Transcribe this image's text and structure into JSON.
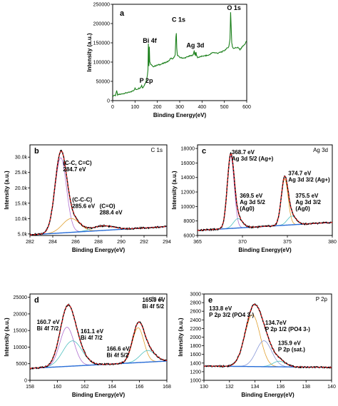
{
  "chart_data": [
    {
      "id": "a",
      "type": "line",
      "panel_label": "a",
      "xlabel": "Binding Energy(eV)",
      "ylabel": "Intensity (a.u.)",
      "xlim": [
        0,
        600
      ],
      "ylim": [
        0,
        250000
      ],
      "xticks": [
        0,
        100,
        200,
        300,
        400,
        500,
        600
      ],
      "yticks": [
        0,
        50000,
        100000,
        150000,
        200000,
        250000
      ],
      "grid": false,
      "series": [
        {
          "color": "#1a7f1a",
          "x": [
            0,
            8,
            12,
            18,
            22,
            30,
            40,
            60,
            80,
            95,
            100,
            105,
            110,
            125,
            130,
            133,
            136,
            140,
            150,
            155,
            158,
            160,
            162,
            164,
            166,
            170,
            180,
            200,
            220,
            240,
            250,
            260,
            270,
            280,
            283,
            285,
            287,
            290,
            300,
            320,
            340,
            360,
            365,
            367,
            369,
            371,
            373,
            375,
            380,
            400,
            430,
            440,
            450,
            470,
            490,
            500,
            510,
            520,
            525,
            528,
            531,
            533,
            536,
            540,
            560,
            570,
            580,
            590,
            600
          ],
          "y": [
            12000,
            14000,
            13500,
            25000,
            15000,
            16000,
            17000,
            20000,
            22000,
            27000,
            32000,
            28000,
            30000,
            34000,
            40000,
            33000,
            35000,
            38000,
            50000,
            65000,
            80000,
            148000,
            90000,
            140000,
            100000,
            95000,
            88000,
            92000,
            95000,
            100000,
            102000,
            110000,
            108000,
            118000,
            165000,
            175000,
            135000,
            118000,
            112000,
            110000,
            115000,
            118000,
            130000,
            120000,
            122000,
            117000,
            125000,
            118000,
            112000,
            115000,
            118000,
            122000,
            125000,
            123000,
            127000,
            130000,
            135000,
            140000,
            160000,
            230000,
            180000,
            150000,
            140000,
            136000,
            138000,
            132000,
            140000,
            145000,
            155000
          ]
        }
      ],
      "annotations": [
        {
          "text": "P 2p",
          "x": 120,
          "y": 46000
        },
        {
          "text": "Bi 4f",
          "x": 135,
          "y": 150000
        },
        {
          "text": "C 1s",
          "x": 265,
          "y": 205000
        },
        {
          "text": "Ag 3d",
          "x": 330,
          "y": 138000
        },
        {
          "text": "O 1s",
          "x": 512,
          "y": 235000
        }
      ]
    },
    {
      "id": "b",
      "type": "line",
      "panel_label": "b",
      "corner_label": "C 1s",
      "xlabel": "Binding Energy(eV)",
      "ylabel": "Intensity (a.u.)",
      "xlim": [
        282,
        294
      ],
      "ylim": [
        4500,
        34000
      ],
      "xticks": [
        282,
        284,
        286,
        288,
        290,
        292,
        294
      ],
      "yticks": [
        5000,
        10000,
        15000,
        20000,
        25000,
        30000
      ],
      "tick_labels_y": [
        "5.0k",
        "10.0k",
        "15.0k",
        "20.0k",
        "25.0k",
        "30.0k"
      ],
      "background": {
        "start": 4700,
        "end": 7400,
        "color": "#2a6ed8"
      },
      "components": [
        {
          "center": 284.7,
          "height": 24500,
          "sigma": 0.5,
          "color": "#b070d0"
        },
        {
          "center": 285.6,
          "height": 4500,
          "sigma": 0.75,
          "color": "#e0a030"
        },
        {
          "center": 288.4,
          "height": 1500,
          "sigma": 0.9,
          "color": "#50c0c0"
        }
      ],
      "data_color": "#000000",
      "fit_color": "#e02020",
      "annotations": [
        {
          "lines": [
            "(C-C, C=C)",
            "284.7 eV"
          ],
          "x": 284.9,
          "y": 27500
        },
        {
          "lines": [
            "(C-C-C)",
            "285.6 eV"
          ],
          "x": 285.7,
          "y": 15500
        },
        {
          "lines": [
            "(C=O)",
            "288.4 eV"
          ],
          "x": 288.1,
          "y": 13500
        }
      ]
    },
    {
      "id": "c",
      "type": "line",
      "panel_label": "c",
      "corner_label": "Ag 3d",
      "xlabel": "Binding Energy(eV)",
      "ylabel": "Intensity (a.u.)",
      "xlim": [
        365,
        380
      ],
      "ylim": [
        6000,
        18500
      ],
      "xticks": [
        365,
        370,
        375,
        380
      ],
      "yticks": [
        6000,
        8000,
        10000,
        12000,
        14000,
        16000,
        18000
      ],
      "background": {
        "start": 6700,
        "end": 7800,
        "color": "#2a6ed8"
      },
      "components": [
        {
          "center": 368.7,
          "height": 10000,
          "sigma": 0.38,
          "color": "#b070d0"
        },
        {
          "center": 369.5,
          "height": 1300,
          "sigma": 0.5,
          "color": "#50c0c0"
        },
        {
          "center": 374.7,
          "height": 6400,
          "sigma": 0.38,
          "color": "#e0a030"
        },
        {
          "center": 375.5,
          "height": 1200,
          "sigma": 0.5,
          "color": "#50c0c0"
        }
      ],
      "data_color": "#000000",
      "fit_color": "#e02020",
      "annotations": [
        {
          "lines": [
            "368.7 eV",
            "Ag 3d 5/2 (Ag+)"
          ],
          "x": 368.8,
          "y": 17200
        },
        {
          "lines": [
            "369.5 eV",
            "Ag 3d 5/2",
            "(Ag0)"
          ],
          "x": 369.7,
          "y": 11200
        },
        {
          "lines": [
            "374.7 eV",
            "Ag 3d 3/2 (Ag+)"
          ],
          "x": 375.1,
          "y": 14300
        },
        {
          "lines": [
            "375.5 eV",
            "Ag 3d 3/2",
            "(Ag0)"
          ],
          "x": 375.9,
          "y": 11200
        }
      ]
    },
    {
      "id": "d",
      "type": "line",
      "panel_label": "d",
      "corner_label": "Bi 4f",
      "xlabel": "Binding Energy(eV)",
      "ylabel": "Intensity (a.u.)",
      "xlim": [
        158,
        168
      ],
      "ylim": [
        0,
        26000
      ],
      "xticks": [
        158,
        160,
        162,
        164,
        166,
        168
      ],
      "yticks": [
        0,
        5000,
        10000,
        15000,
        20000,
        25000
      ],
      "background": {
        "start": 3600,
        "end": 5800,
        "color": "#2a6ed8"
      },
      "components": [
        {
          "center": 160.7,
          "height": 11800,
          "sigma": 0.52,
          "color": "#b070d0"
        },
        {
          "center": 161.1,
          "height": 7600,
          "sigma": 0.7,
          "color": "#50c0c0"
        },
        {
          "center": 165.9,
          "height": 10500,
          "sigma": 0.42,
          "color": "#e0a030"
        },
        {
          "center": 166.6,
          "height": 3500,
          "sigma": 0.55,
          "color": "#50c0c0"
        }
      ],
      "data_color": "#000000",
      "fit_color": "#e02020",
      "annotations": [
        {
          "lines": [
            "160.7 eV",
            "Bi 4f 7/2"
          ],
          "x": 158.5,
          "y": 17000
        },
        {
          "lines": [
            "161.1 eV",
            "Bi 4f 7/2"
          ],
          "x": 161.7,
          "y": 14200
        },
        {
          "lines": [
            "166.6 eV",
            "Bi 4f 5/2"
          ],
          "x": 163.6,
          "y": 8900
        },
        {
          "lines": [
            "165.9 eV",
            "Bi 4f 5/2"
          ],
          "x": 166.2,
          "y": 23600
        }
      ]
    },
    {
      "id": "e",
      "type": "line",
      "panel_label": "e",
      "corner_label": "P 2p",
      "xlabel": "Binding Energy(eV)",
      "ylabel": "Intensity (a.u.)",
      "xlim": [
        130,
        140
      ],
      "ylim": [
        1000,
        3000
      ],
      "xticks": [
        130,
        132,
        134,
        136,
        138,
        140
      ],
      "yticks": [
        1000,
        1200,
        1400,
        1600,
        1800,
        2000,
        2200,
        2400,
        2600,
        2800,
        3000
      ],
      "background": {
        "start": 1330,
        "end": 1300,
        "color": "#2a6ed8"
      },
      "components": [
        {
          "center": 133.8,
          "height": 1200,
          "sigma": 0.6,
          "color": "#e0a030"
        },
        {
          "center": 134.7,
          "height": 600,
          "sigma": 0.6,
          "color": "#8898d8"
        },
        {
          "center": 135.9,
          "height": 130,
          "sigma": 0.5,
          "color": "#50c0c0"
        }
      ],
      "data_color": "#000000",
      "fit_color": "#e02020",
      "annotations": [
        {
          "lines": [
            "133.8 eV",
            "P 2p 3/2 (PO4 3-)"
          ],
          "x": 130.4,
          "y": 2620
        },
        {
          "lines": [
            "134.7eV",
            "P 2p 1/2 (PO4 3-)"
          ],
          "x": 134.8,
          "y": 2290
        },
        {
          "lines": [
            "135.9 eV",
            "P 2p (sat.)"
          ],
          "x": 135.8,
          "y": 1820
        }
      ]
    }
  ]
}
